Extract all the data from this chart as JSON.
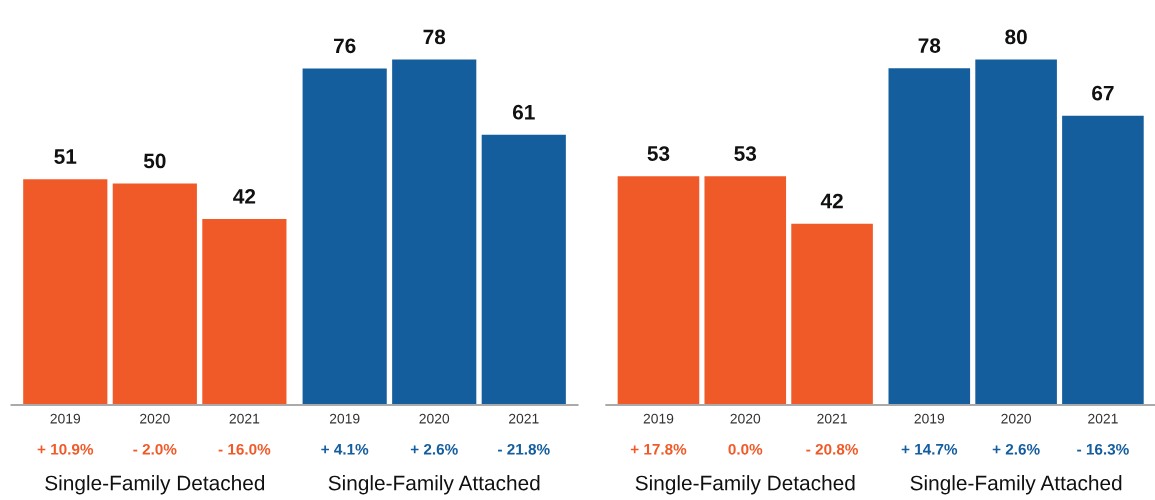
{
  "chart_data": [
    {
      "type": "bar",
      "categories": [
        "2019",
        "2020",
        "2021",
        "2019",
        "2020",
        "2021"
      ],
      "values": [
        51,
        50,
        42,
        76,
        78,
        61
      ],
      "colors": [
        "#f05a28",
        "#f05a28",
        "#f05a28",
        "#155e9e",
        "#155e9e",
        "#155e9e"
      ],
      "tick_labels": "x",
      "data_labels": true,
      "annotations": [
        "+ 10.9%",
        "- 2.0%",
        "- 16.0%",
        "+ 4.1%",
        "+ 2.6%",
        "- 21.8%",
        "Single-Family Detached",
        "Single-Family Attached"
      ]
    },
    {
      "type": "bar",
      "categories": [
        "2019",
        "2020",
        "2021",
        "2019",
        "2020",
        "2021"
      ],
      "values": [
        53,
        53,
        42,
        78,
        80,
        67
      ],
      "colors": [
        "#f05a28",
        "#f05a28",
        "#f05a28",
        "#155e9e",
        "#155e9e",
        "#155e9e"
      ],
      "tick_labels": "x",
      "data_labels": true,
      "annotations": [
        "+ 17.8%",
        "0.0%",
        "- 20.8%",
        "+ 14.7%",
        "+ 2.6%",
        "- 16.3%",
        "Single-Family Detached",
        "Single-Family Attached"
      ]
    }
  ]
}
